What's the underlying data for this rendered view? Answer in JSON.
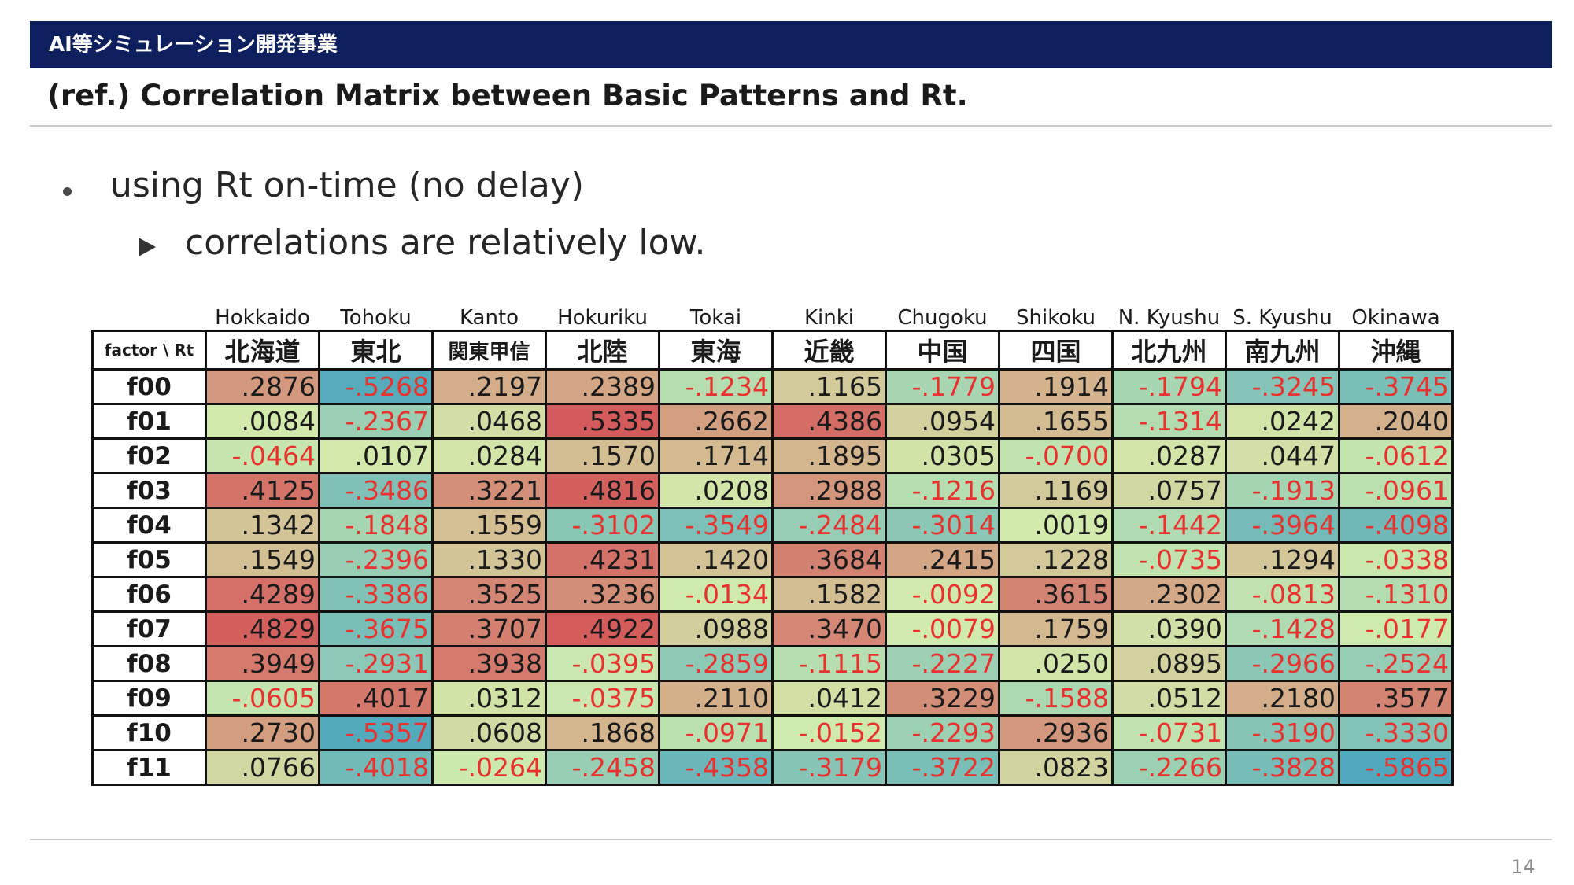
{
  "header": {
    "section": "AI等シミュレーション開発事業",
    "title": "(ref.) Correlation Matrix between Basic Patterns and Rt."
  },
  "bullets": [
    {
      "level": 1,
      "text": "using Rt on-time (no delay)"
    },
    {
      "level": 2,
      "text": "correlations are relatively low."
    }
  ],
  "page_number": "14",
  "colors": {
    "header_bg": "#0d1f5c",
    "positive_text": "#1a1a1a",
    "negative_text": "#e8322f"
  },
  "chart_data": {
    "type": "heatmap",
    "corner_label": "factor \\ Rt",
    "columns_en": [
      "Hokkaido",
      "Tohoku",
      "Kanto",
      "Hokuriku",
      "Tokai",
      "Kinki",
      "Chugoku",
      "Shikoku",
      "N. Kyushu",
      "S. Kyushu",
      "Okinawa"
    ],
    "columns_jp": [
      "北海道",
      "東北",
      "関東甲信",
      "北陸",
      "東海",
      "近畿",
      "中国",
      "四国",
      "北九州",
      "南九州",
      "沖縄"
    ],
    "rows": [
      "f00",
      "f01",
      "f02",
      "f03",
      "f04",
      "f05",
      "f06",
      "f07",
      "f08",
      "f09",
      "f10",
      "f11"
    ],
    "cell_text": [
      [
        ".2876",
        "-.5268",
        ".2197",
        ".2389",
        "-.1234",
        ".1165",
        "-.1779",
        ".1914",
        "-.1794",
        "-.3245",
        "-.3745"
      ],
      [
        ".0084",
        "-.2367",
        ".0468",
        ".5335",
        ".2662",
        ".4386",
        ".0954",
        ".1655",
        "-.1314",
        ".0242",
        ".2040"
      ],
      [
        "-.0464",
        ".0107",
        ".0284",
        ".1570",
        ".1714",
        ".1895",
        ".0305",
        "-.0700",
        ".0287",
        ".0447",
        "-.0612"
      ],
      [
        ".4125",
        "-.3486",
        ".3221",
        ".4816",
        ".0208",
        ".2988",
        "-.1216",
        ".1169",
        ".0757",
        "-.1913",
        "-.0961"
      ],
      [
        ".1342",
        "-.1848",
        ".1559",
        "-.3102",
        "-.3549",
        "-.2484",
        "-.3014",
        ".0019",
        "-.1442",
        "-.3964",
        "-.4098"
      ],
      [
        ".1549",
        "-.2396",
        ".1330",
        ".4231",
        ".1420",
        ".3684",
        ".2415",
        ".1228",
        "-.0735",
        ".1294",
        "-.0338"
      ],
      [
        ".4289",
        "-.3386",
        ".3525",
        ".3236",
        "-.0134",
        ".1582",
        "-.0092",
        ".3615",
        ".2302",
        "-.0813",
        "-.1310"
      ],
      [
        ".4829",
        "-.3675",
        ".3707",
        ".4922",
        ".0988",
        ".3470",
        "-.0079",
        ".1759",
        ".0390",
        "-.1428",
        "-.0177"
      ],
      [
        ".3949",
        "-.2931",
        ".3938",
        "-.0395",
        "-.2859",
        "-.1115",
        "-.2227",
        ".0250",
        ".0895",
        "-.2966",
        "-.2524"
      ],
      [
        "-.0605",
        ".4017",
        ".0312",
        "-.0375",
        ".2110",
        ".0412",
        ".3229",
        "-.1588",
        ".0512",
        ".2180",
        ".3577"
      ],
      [
        ".2730",
        "-.5357",
        ".0608",
        ".1868",
        "-.0971",
        "-.0152",
        "-.2293",
        ".2936",
        "-.0731",
        "-.3190",
        "-.3330"
      ],
      [
        ".0766",
        "-.4018",
        "-.0264",
        "-.2458",
        "-.4358",
        "-.3179",
        "-.3722",
        ".0823",
        "-.2266",
        "-.3828",
        "-.5865"
      ]
    ],
    "color_scale": {
      "negative": "#4fa8bc",
      "zero": "#d2ecad",
      "positive": "#d45b5b"
    }
  }
}
